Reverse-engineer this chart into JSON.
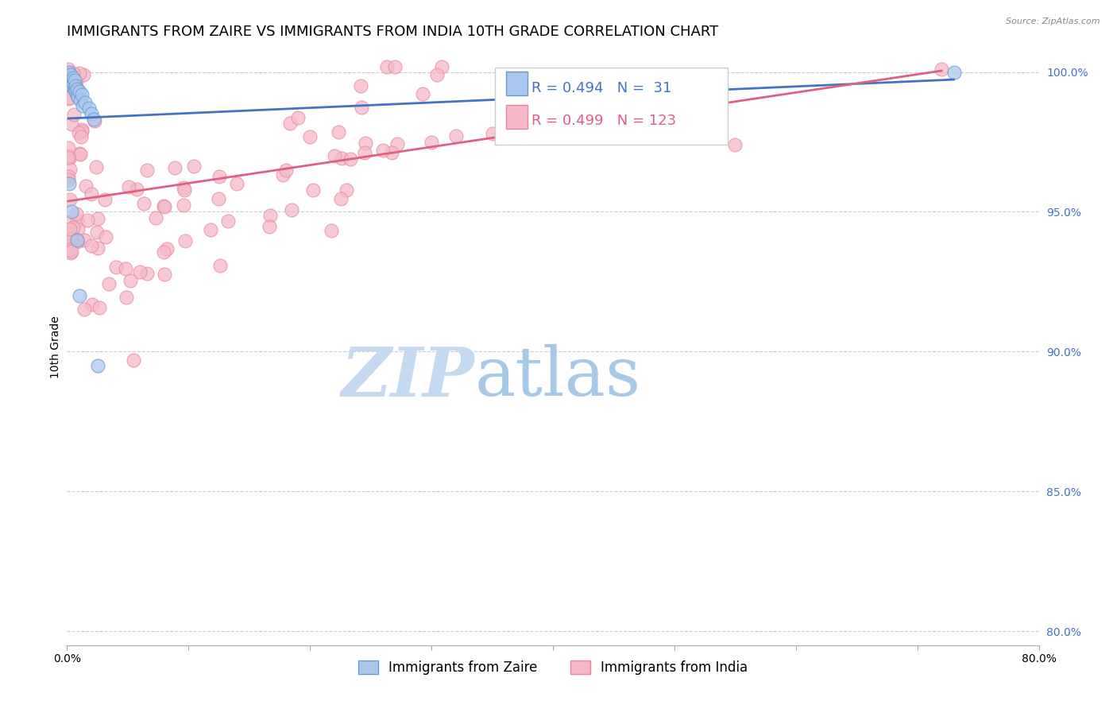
{
  "title": "IMMIGRANTS FROM ZAIRE VS IMMIGRANTS FROM INDIA 10TH GRADE CORRELATION CHART",
  "source": "Source: ZipAtlas.com",
  "ylabel": "10th Grade",
  "xlim": [
    0.0,
    0.8
  ],
  "ylim": [
    0.795,
    1.008
  ],
  "xticks": [
    0.0,
    0.1,
    0.2,
    0.3,
    0.4,
    0.5,
    0.6,
    0.7,
    0.8
  ],
  "xticklabels": [
    "0.0%",
    "",
    "",
    "",
    "",
    "",
    "",
    "",
    "80.0%"
  ],
  "yticks": [
    0.8,
    0.85,
    0.9,
    0.95,
    1.0
  ],
  "yticklabels": [
    "80.0%",
    "85.0%",
    "90.0%",
    "95.0%",
    "100.0%"
  ],
  "legend1_label": "Immigrants from Zaire",
  "legend2_label": "Immigrants from India",
  "r_zaire": 0.494,
  "n_zaire": 31,
  "r_india": 0.499,
  "n_india": 123,
  "color_zaire_fill": "#aac8ee",
  "color_india_fill": "#f5b8c8",
  "color_zaire_edge": "#6699cc",
  "color_india_edge": "#e888a0",
  "color_zaire_line": "#4472c4",
  "color_india_line": "#e06080",
  "color_zaire_text": "#4472c4",
  "color_india_text": "#e06080",
  "watermark_zip": "ZIP",
  "watermark_atlas": "atlas",
  "watermark_color_zip": "#c8ddf0",
  "watermark_color_atlas": "#b0c8e8",
  "title_fontsize": 13,
  "axis_label_fontsize": 10,
  "tick_fontsize": 10,
  "legend_fontsize": 13
}
